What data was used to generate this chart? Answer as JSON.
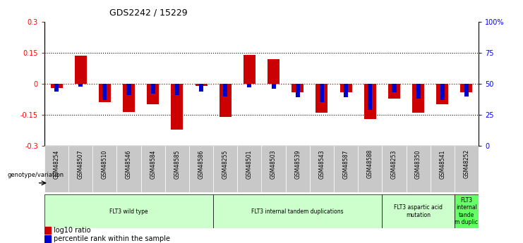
{
  "title": "GDS2242 / 15229",
  "samples": [
    "GSM48254",
    "GSM48507",
    "GSM48510",
    "GSM48546",
    "GSM48584",
    "GSM48585",
    "GSM48586",
    "GSM48255",
    "GSM48501",
    "GSM48503",
    "GSM48539",
    "GSM48543",
    "GSM48587",
    "GSM48588",
    "GSM48253",
    "GSM48350",
    "GSM48541",
    "GSM48252"
  ],
  "log10_ratio": [
    -0.02,
    0.135,
    -0.09,
    -0.135,
    -0.1,
    -0.22,
    -0.01,
    -0.16,
    0.14,
    0.12,
    -0.04,
    -0.14,
    -0.04,
    -0.17,
    -0.07,
    -0.14,
    -0.1,
    -0.04
  ],
  "percentile_rank": [
    44,
    48,
    37,
    41,
    42,
    41,
    44,
    40,
    47,
    46,
    39,
    35,
    39,
    29,
    43,
    38,
    37,
    40
  ],
  "ylim_left": [
    -0.3,
    0.3
  ],
  "ylim_right": [
    0,
    100
  ],
  "yticks_left": [
    -0.3,
    -0.15,
    0,
    0.15,
    0.3
  ],
  "yticks_right": [
    0,
    25,
    50,
    75,
    100
  ],
  "ytick_labels_right": [
    "0",
    "25",
    "50",
    "75",
    "100%"
  ],
  "bar_color_red": "#cc0000",
  "bar_color_blue": "#0000cc",
  "zero_line_color": "#cc0000",
  "dotted_line_color": "#000000",
  "groups": [
    {
      "label": "FLT3 wild type",
      "start": 0,
      "end": 7,
      "color": "#ccffcc"
    },
    {
      "label": "FLT3 internal tandem duplications",
      "start": 7,
      "end": 14,
      "color": "#ccffcc"
    },
    {
      "label": "FLT3 aspartic acid\nmutation",
      "start": 14,
      "end": 17,
      "color": "#ccffcc"
    },
    {
      "label": "FLT3\ninternal\ntande\nm duplic",
      "start": 17,
      "end": 18,
      "color": "#66ff66"
    }
  ],
  "legend_red_label": "log10 ratio",
  "legend_blue_label": "percentile rank within the sample",
  "genotype_label": "genotype/variation",
  "red_bar_width": 0.5,
  "blue_bar_width": 0.18
}
